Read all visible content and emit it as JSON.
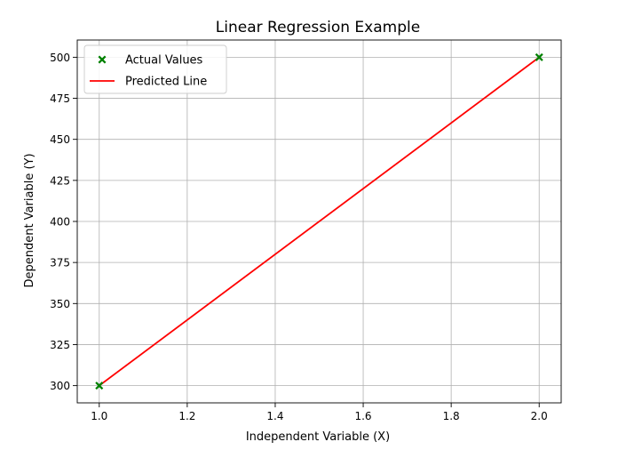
{
  "chart_data": {
    "type": "scatter",
    "title": "Linear Regression Example",
    "xlabel": "Independent Variable (X)",
    "ylabel": "Dependent Variable (Y)",
    "xlim": [
      0.95,
      2.05
    ],
    "ylim": [
      289.5,
      510.5
    ],
    "xticks": [
      1.0,
      1.2,
      1.4,
      1.6,
      1.8,
      2.0
    ],
    "xtick_labels": [
      "1.0",
      "1.2",
      "1.4",
      "1.6",
      "1.8",
      "2.0"
    ],
    "yticks": [
      300,
      325,
      350,
      375,
      400,
      425,
      450,
      475,
      500
    ],
    "ytick_labels": [
      "300",
      "325",
      "350",
      "375",
      "400",
      "425",
      "450",
      "475",
      "500"
    ],
    "grid": true,
    "legend_position": "upper-left",
    "series": [
      {
        "name": "Actual Values",
        "kind": "scatter",
        "marker": "x-filled",
        "color": "#008000",
        "x": [
          1.0,
          2.0
        ],
        "y": [
          300,
          500
        ]
      },
      {
        "name": "Predicted Line",
        "kind": "line",
        "color": "#ff0000",
        "x": [
          1.0,
          2.0
        ],
        "y": [
          300,
          500
        ]
      }
    ]
  }
}
